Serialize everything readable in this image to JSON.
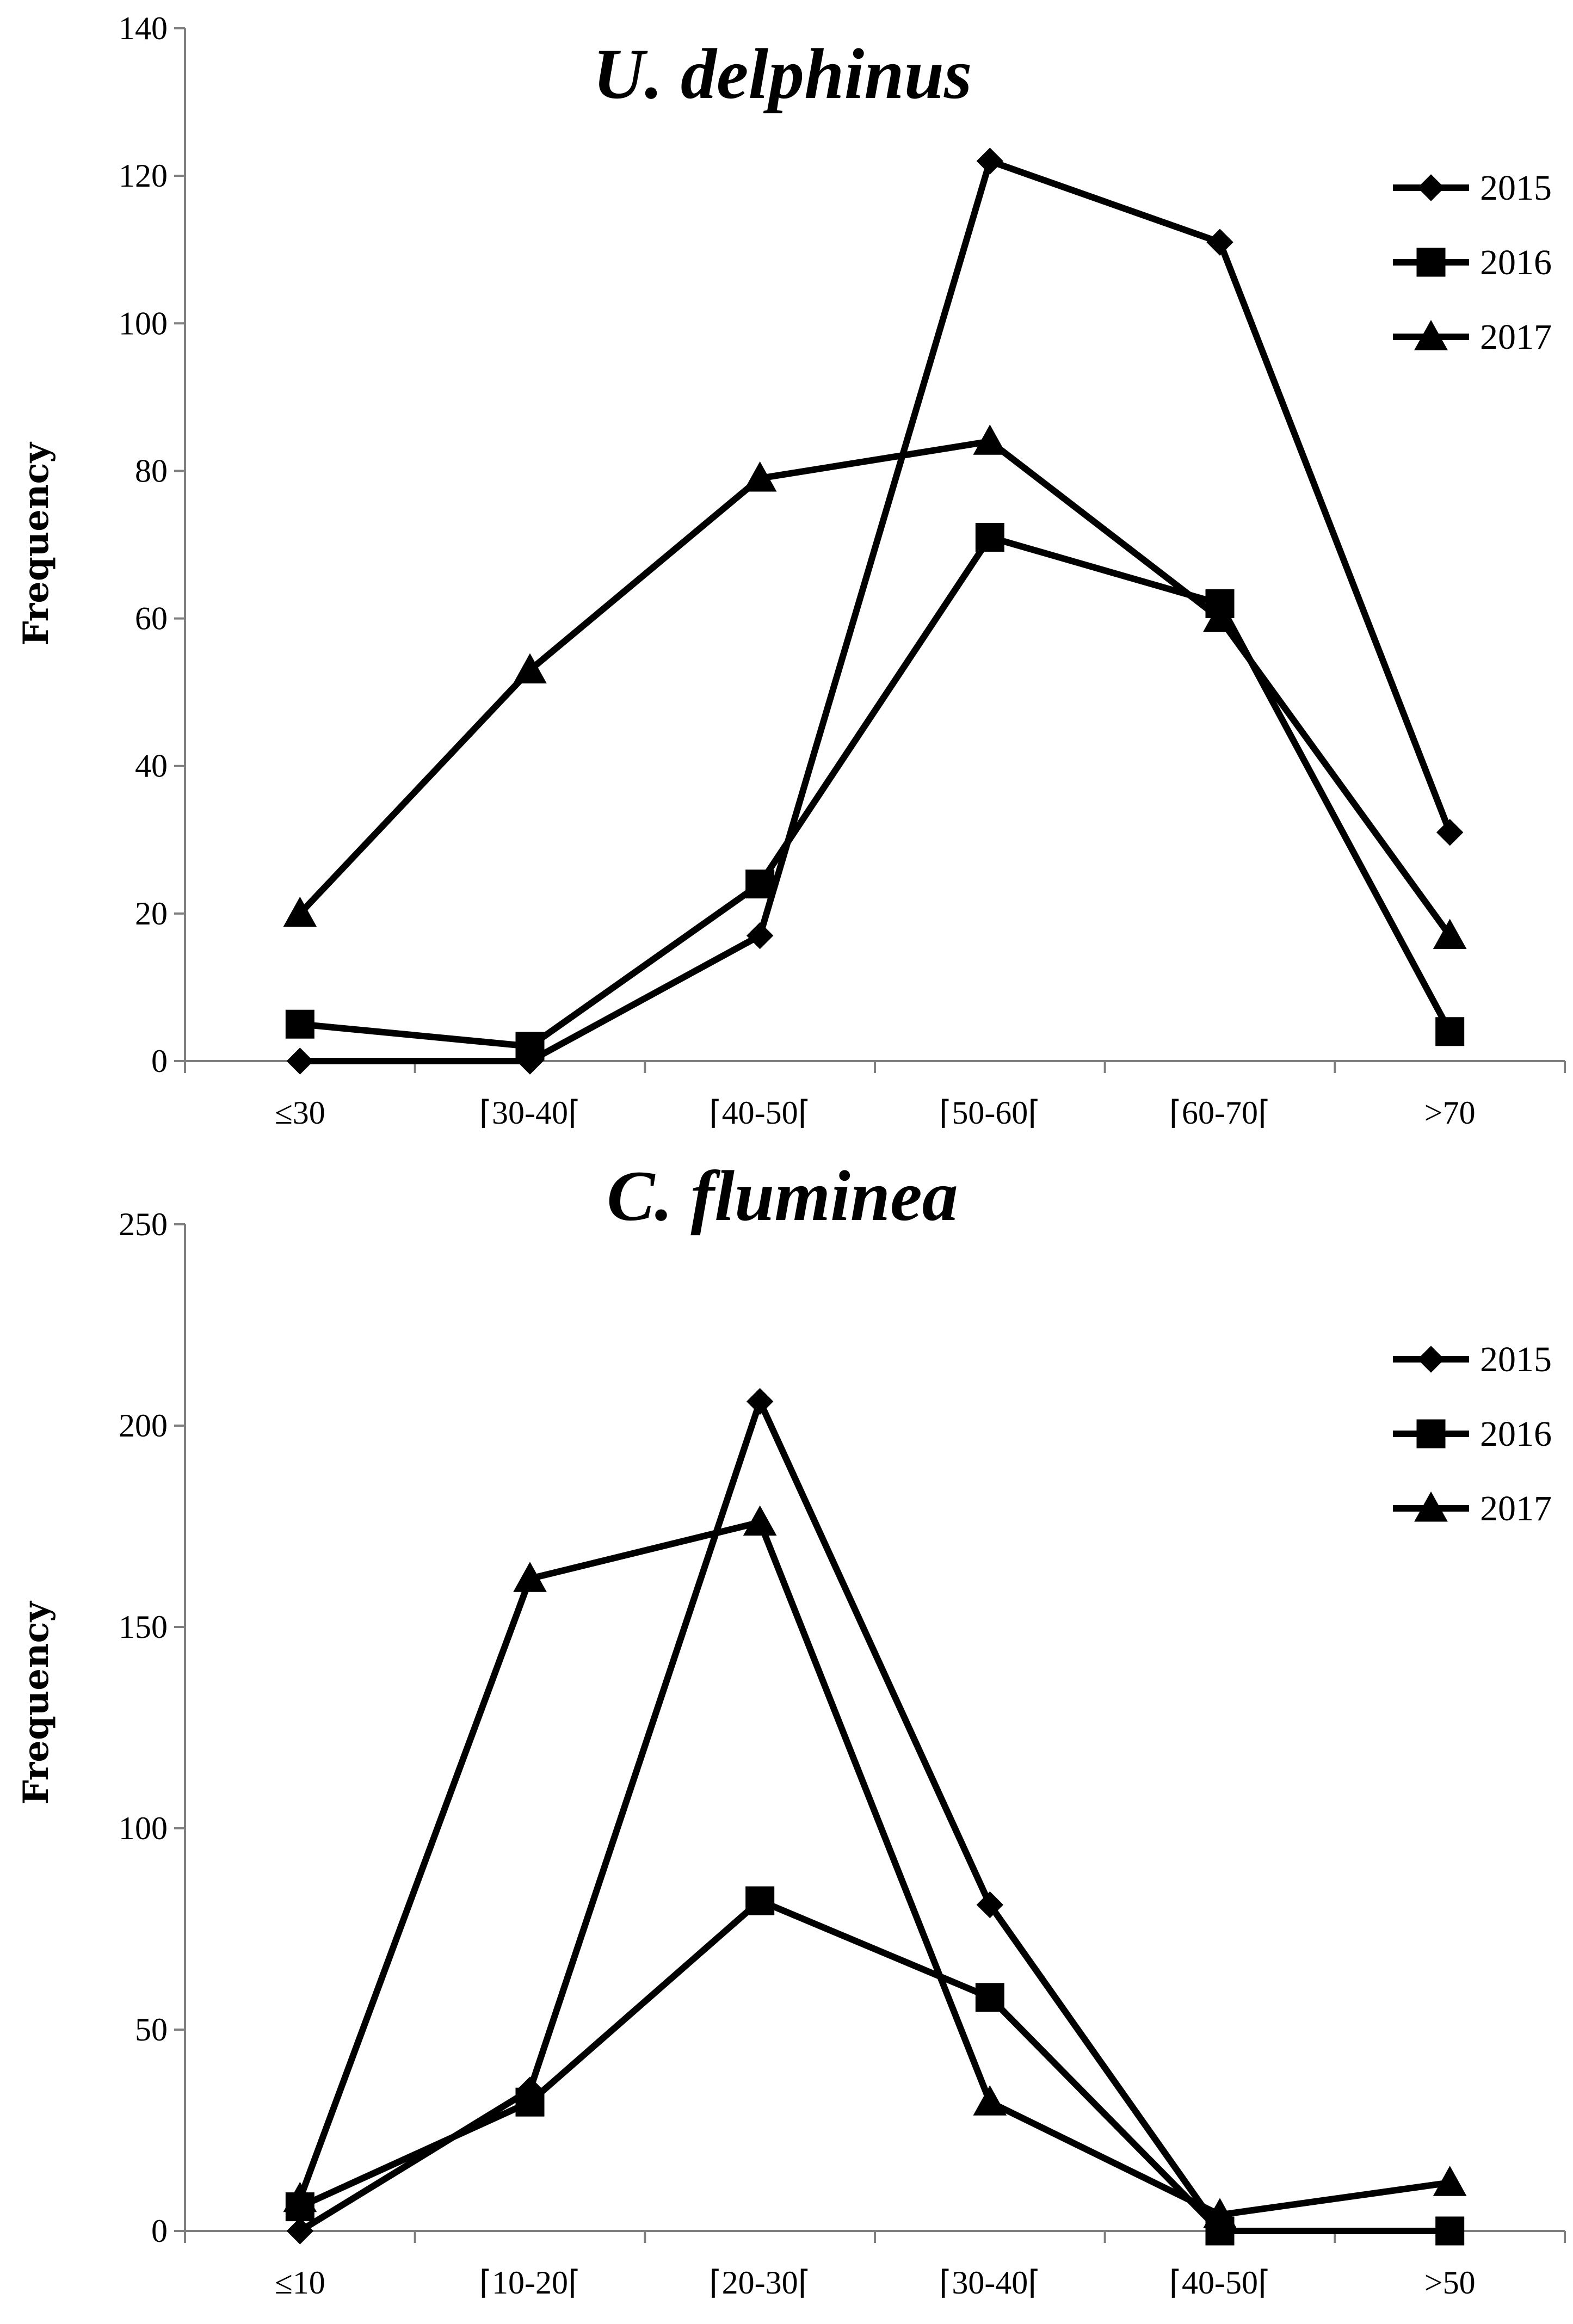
{
  "chart_data": [
    {
      "type": "line",
      "title": "U. delphinus",
      "ylabel": "Frequency",
      "xlabel": "",
      "ylim": [
        0,
        140
      ],
      "yticks": [
        "0",
        "20",
        "40",
        "60",
        "80",
        "100",
        "120",
        "140"
      ],
      "categories": [
        "≤30",
        "⌈30-40⌈",
        "⌈40-50⌈",
        "⌈50-60⌈",
        "⌈60-70⌈",
        ">70"
      ],
      "series": [
        {
          "name": "2015",
          "marker": "diamond",
          "values": [
            0,
            0,
            17,
            122,
            111,
            31
          ]
        },
        {
          "name": "2016",
          "marker": "square",
          "values": [
            5,
            2,
            24,
            71,
            62,
            4
          ]
        },
        {
          "name": "2017",
          "marker": "triangle",
          "values": [
            20,
            53,
            79,
            84,
            60,
            17
          ]
        }
      ],
      "legend_position": "top-right",
      "grid": false
    },
    {
      "type": "line",
      "title": "C. fluminea",
      "ylabel": "Frequency",
      "xlabel": "",
      "ylim": [
        0,
        250
      ],
      "yticks": [
        "0",
        "50",
        "100",
        "150",
        "200",
        "250"
      ],
      "categories": [
        "≤10",
        "⌈10-20⌈",
        "⌈20-30⌈",
        "⌈30-40⌈",
        "⌈40-50⌈",
        ">50"
      ],
      "series": [
        {
          "name": "2015",
          "marker": "diamond",
          "values": [
            0,
            35,
            206,
            81,
            0,
            0
          ]
        },
        {
          "name": "2016",
          "marker": "square",
          "values": [
            6,
            32,
            82,
            58,
            0,
            0
          ]
        },
        {
          "name": "2017",
          "marker": "triangle",
          "values": [
            8,
            162,
            176,
            32,
            4,
            12
          ]
        }
      ],
      "legend_position": "top-right",
      "grid": false
    }
  ]
}
